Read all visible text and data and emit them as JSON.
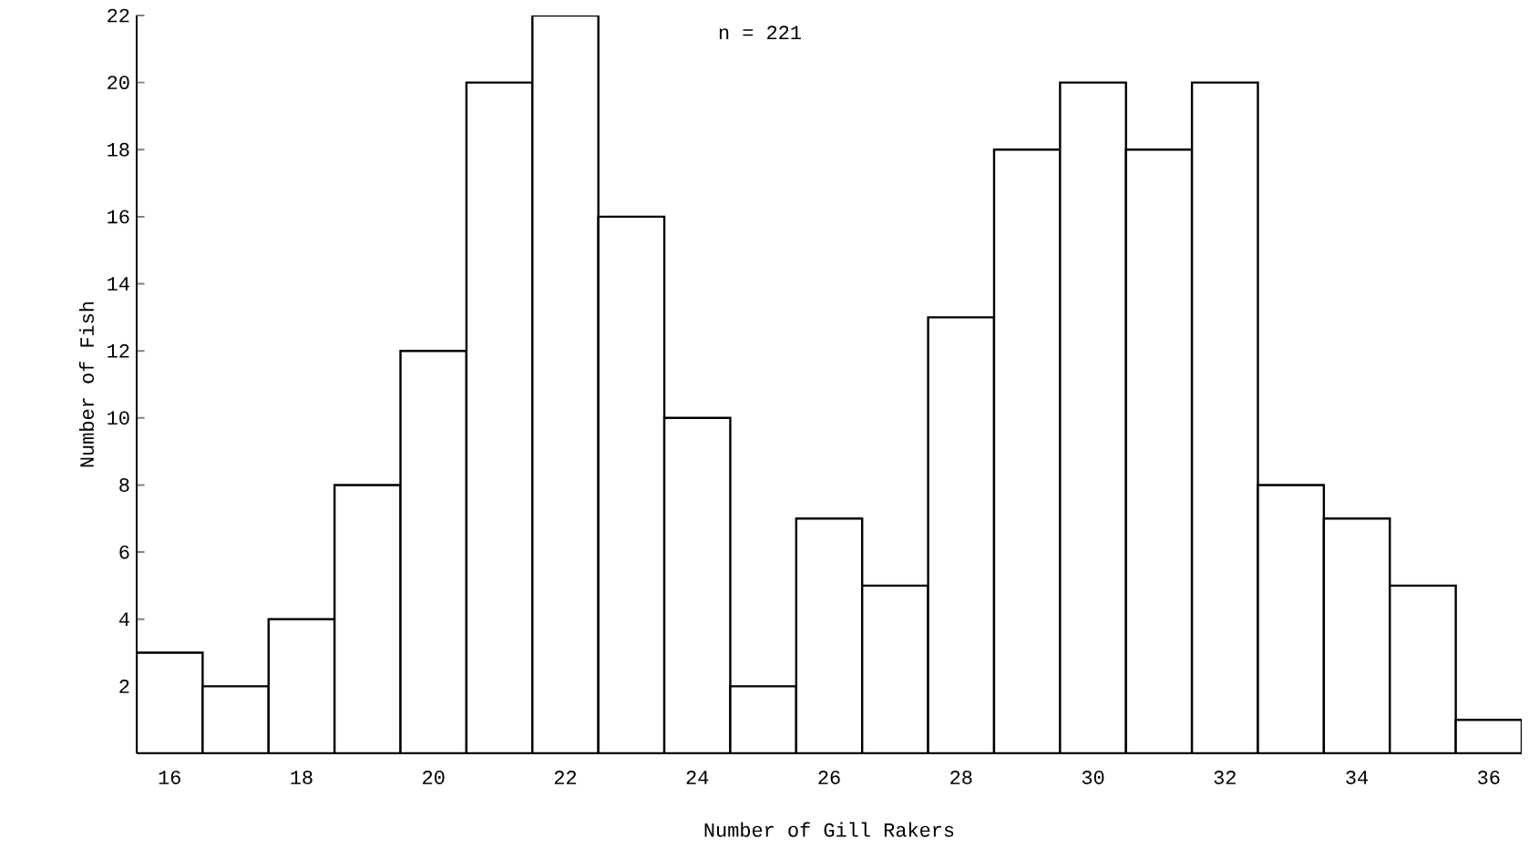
{
  "chart_data": {
    "type": "histogram",
    "title": "n = 221",
    "xlabel": "Number of Gill Rakers",
    "ylabel": "Number of Fish",
    "bins": [
      15.5,
      16.5,
      17.5,
      18.5,
      19.5,
      20.5,
      21.5,
      22.5,
      23.5,
      24.5,
      25.5,
      26.5,
      27.5,
      28.5,
      29.5,
      30.5,
      31.5,
      32.5,
      33.5,
      34.5,
      35.5,
      36.5
    ],
    "values": [
      3,
      2,
      4,
      8,
      12,
      20,
      22,
      16,
      10,
      2,
      7,
      5,
      13,
      18,
      20,
      18,
      20,
      8,
      7,
      5,
      1
    ],
    "color": "#ffffff",
    "xlim": [
      15.5,
      36.5
    ],
    "ylim": [
      0,
      22
    ],
    "xticks": [
      16,
      18,
      20,
      22,
      24,
      26,
      28,
      30,
      32,
      34,
      36
    ],
    "yticks": [
      2,
      4,
      6,
      8,
      10,
      12,
      14,
      16,
      18,
      20,
      22
    ],
    "grid": false
  }
}
